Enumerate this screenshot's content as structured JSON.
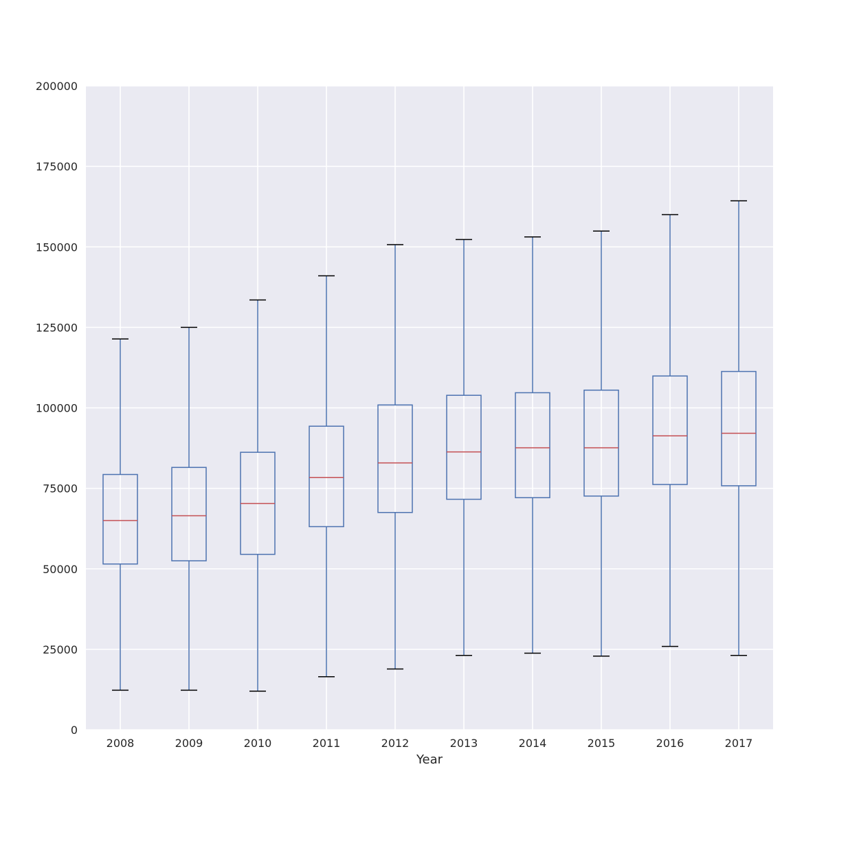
{
  "chart_data": {
    "type": "box",
    "xlabel": "Year",
    "ylabel": "",
    "title": "",
    "ylim": [
      0,
      200000
    ],
    "yticks": [
      0,
      25000,
      50000,
      75000,
      100000,
      125000,
      150000,
      175000,
      200000
    ],
    "grid": true,
    "colors": {
      "background": "#eaeaf2",
      "grid": "#ffffff",
      "box": "#4c72b0",
      "median": "#c44e52",
      "cap": "#000000"
    },
    "boxes": [
      {
        "category": "2008",
        "whisker_low": 12300,
        "q1": 51500,
        "median": 65000,
        "q3": 79300,
        "whisker_high": 121400
      },
      {
        "category": "2009",
        "whisker_low": 12300,
        "q1": 52500,
        "median": 66500,
        "q3": 81500,
        "whisker_high": 125000
      },
      {
        "category": "2010",
        "whisker_low": 12000,
        "q1": 54500,
        "median": 70300,
        "q3": 86200,
        "whisker_high": 133500
      },
      {
        "category": "2011",
        "whisker_low": 16500,
        "q1": 63100,
        "median": 78400,
        "q3": 94300,
        "whisker_high": 141000
      },
      {
        "category": "2012",
        "whisker_low": 18900,
        "q1": 67500,
        "median": 82900,
        "q3": 100900,
        "whisker_high": 150700
      },
      {
        "category": "2013",
        "whisker_low": 23100,
        "q1": 71600,
        "median": 86300,
        "q3": 103900,
        "whisker_high": 152300
      },
      {
        "category": "2014",
        "whisker_low": 23800,
        "q1": 72100,
        "median": 87600,
        "q3": 104700,
        "whisker_high": 153100
      },
      {
        "category": "2015",
        "whisker_low": 22900,
        "q1": 72600,
        "median": 87600,
        "q3": 105500,
        "whisker_high": 154900
      },
      {
        "category": "2016",
        "whisker_low": 25900,
        "q1": 76200,
        "median": 91300,
        "q3": 109900,
        "whisker_high": 160000
      },
      {
        "category": "2017",
        "whisker_low": 23100,
        "q1": 75800,
        "median": 92100,
        "q3": 111300,
        "whisker_high": 164300
      }
    ]
  }
}
